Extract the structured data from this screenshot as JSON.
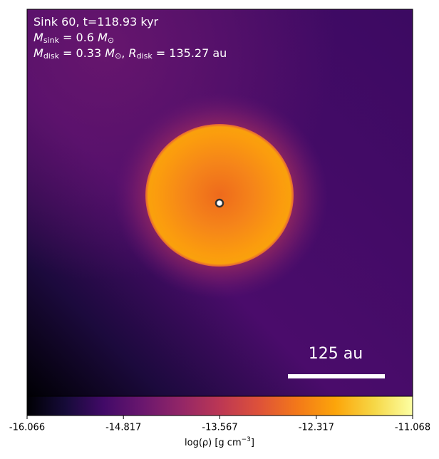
{
  "chart_data": {
    "type": "image",
    "annotations": [
      [
        "Sink 60, t=118.93 kyr"
      ],
      [
        "M",
        "sink",
        " = 0.6 ",
        "M",
        "⊙"
      ],
      [
        "M",
        "disk",
        " = 0.33 ",
        "M",
        "⊙",
        ", ",
        "R",
        "disk",
        " = 135.27 au"
      ]
    ],
    "scale_bar": "125 au",
    "colorbar": {
      "label": [
        "log(ρ) [g cm",
        "−3",
        "]"
      ],
      "clim": [
        -16.066,
        -11.068
      ],
      "ticks": [
        -16.066,
        -14.817,
        -13.567,
        -12.317,
        -11.068
      ]
    }
  }
}
